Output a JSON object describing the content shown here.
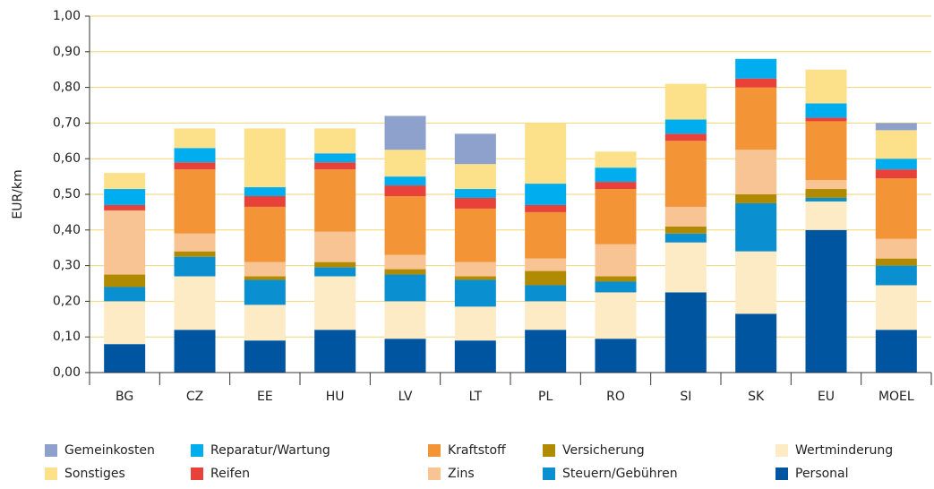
{
  "chart_data": {
    "type": "stacked_bar",
    "y_label": "EUR/km",
    "categories": [
      "BG",
      "CZ",
      "EE",
      "HU",
      "LV",
      "LT",
      "PL",
      "RO",
      "SI",
      "SK",
      "EU",
      "MOEL"
    ],
    "series": [
      {
        "name": "Personal",
        "color": "#0055a0",
        "values": [
          0.08,
          0.12,
          0.09,
          0.12,
          0.095,
          0.09,
          0.12,
          0.095,
          0.225,
          0.165,
          0.4,
          0.12
        ]
      },
      {
        "name": "Wertminderung",
        "color": "#fdebc6",
        "values": [
          0.12,
          0.15,
          0.1,
          0.15,
          0.105,
          0.095,
          0.08,
          0.13,
          0.14,
          0.175,
          0.08,
          0.125
        ]
      },
      {
        "name": "Steuern/Gebühren",
        "color": "#0a90d0",
        "values": [
          0.04,
          0.055,
          0.07,
          0.025,
          0.075,
          0.075,
          0.045,
          0.03,
          0.025,
          0.135,
          0.01,
          0.055
        ]
      },
      {
        "name": "Versicherung",
        "color": "#b08a00",
        "values": [
          0.035,
          0.015,
          0.01,
          0.015,
          0.015,
          0.01,
          0.04,
          0.015,
          0.02,
          0.025,
          0.025,
          0.02
        ]
      },
      {
        "name": "Zins",
        "color": "#f9c493",
        "values": [
          0.18,
          0.05,
          0.04,
          0.085,
          0.04,
          0.04,
          0.035,
          0.09,
          0.055,
          0.125,
          0.025,
          0.055
        ]
      },
      {
        "name": "Kraftstoff",
        "color": "#f39437",
        "values": [
          0,
          0.18,
          0.155,
          0.175,
          0.165,
          0.15,
          0.13,
          0.155,
          0.185,
          0.175,
          0.165,
          0.17
        ]
      },
      {
        "name": "Reifen",
        "color": "#e8413a",
        "values": [
          0.015,
          0.02,
          0.03,
          0.02,
          0.03,
          0.03,
          0.02,
          0.02,
          0.02,
          0.025,
          0.01,
          0.025
        ]
      },
      {
        "name": "Reparatur/Wartung",
        "color": "#00aeef",
        "values": [
          0.045,
          0.04,
          0.025,
          0.025,
          0.025,
          0.025,
          0.06,
          0.04,
          0.04,
          0.055,
          0.04,
          0.03
        ]
      },
      {
        "name": "Sonstiges",
        "color": "#fde08a",
        "values": [
          0.045,
          0.055,
          0.165,
          0.07,
          0.075,
          0.07,
          0.17,
          0.045,
          0.1,
          0,
          0.095,
          0.08
        ]
      },
      {
        "name": "Gemeinkosten",
        "color": "#8ea0cc",
        "values": [
          0,
          0,
          0,
          0,
          0.095,
          0.085,
          0,
          0,
          0,
          0,
          0,
          0.02
        ]
      }
    ],
    "ylim": [
      0,
      1
    ],
    "yticks": [
      {
        "value": 0,
        "label": "0,00"
      },
      {
        "value": 0.1,
        "label": "0,10"
      },
      {
        "value": 0.2,
        "label": "0,20"
      },
      {
        "value": 0.3,
        "label": "0,30"
      },
      {
        "value": 0.4,
        "label": "0,40"
      },
      {
        "value": 0.5,
        "label": "0,50"
      },
      {
        "value": 0.6,
        "label": "0,60"
      },
      {
        "value": 0.7,
        "label": "0,70"
      },
      {
        "value": 0.8,
        "label": "0,80"
      },
      {
        "value": 0.9,
        "label": "0,90"
      },
      {
        "value": 1,
        "label": "1,00"
      }
    ],
    "grid": true
  }
}
